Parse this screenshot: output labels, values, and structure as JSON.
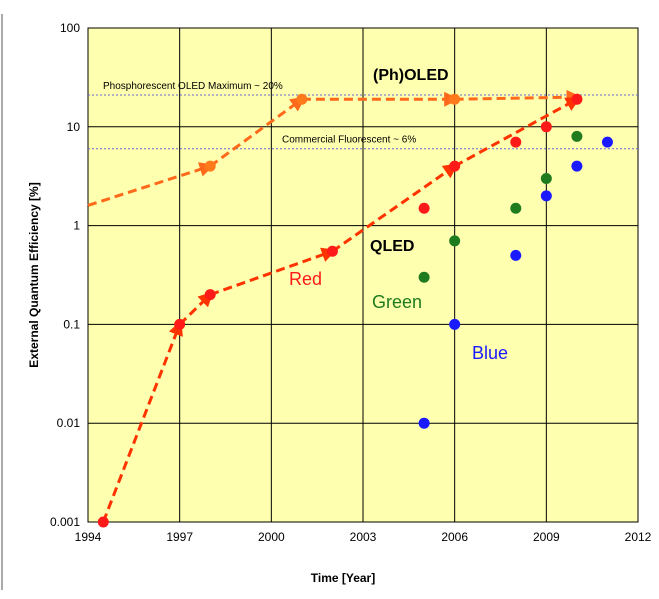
{
  "chart_data": {
    "type": "scatter",
    "title": "",
    "xlabel": "Time [Year]",
    "ylabel": "External Quantum Efficiency [%]",
    "xlim": [
      1994,
      2012
    ],
    "ylim": [
      0.001,
      100
    ],
    "yscale": "log",
    "xticks": [
      "1994",
      "1997",
      "2000",
      "2003",
      "2006",
      "2009",
      "2012"
    ],
    "yticks": [
      "0.001",
      "0.01",
      "0.1",
      "1",
      "10",
      "100"
    ],
    "grid": true,
    "colors": {
      "plot_bg": "#ffffb0",
      "grid": "#000000",
      "red": "#ff1a1a",
      "green": "#1e7b1e",
      "blue": "#1a1aff",
      "orange": "#ff7a1a",
      "red_trend": "#ff3300",
      "orange_trend": "#ff6a1a",
      "ref_line": "#6a6acd"
    },
    "reference_lines": [
      {
        "label": "Phosphorescent OLED Maximum ~ 20%",
        "y": 21
      },
      {
        "label": "Commercial Fluorescent  ~ 6%",
        "y": 6
      }
    ],
    "labels": {
      "pholed": "(Ph)OLED",
      "qled": "QLED",
      "red": "Red",
      "green": "Green",
      "blue": "Blue"
    },
    "series": [
      {
        "color": "orange",
        "points": [
          [
            1998,
            4
          ],
          [
            2001,
            19
          ],
          [
            2006,
            19
          ],
          [
            2010,
            19
          ]
        ]
      },
      {
        "color": "red",
        "points": [
          [
            1994.5,
            0.001
          ],
          [
            1997,
            0.1
          ],
          [
            1998,
            0.2
          ],
          [
            2002,
            0.55
          ],
          [
            2005,
            1.5
          ],
          [
            2006,
            4
          ],
          [
            2008,
            7
          ],
          [
            2009,
            10
          ],
          [
            2010,
            19
          ]
        ]
      },
      {
        "color": "green",
        "points": [
          [
            2005,
            0.3
          ],
          [
            2006,
            0.7
          ],
          [
            2008,
            1.5
          ],
          [
            2009,
            3
          ],
          [
            2010,
            8
          ]
        ]
      },
      {
        "color": "blue",
        "points": [
          [
            2005,
            0.01
          ],
          [
            2006,
            0.1
          ],
          [
            2008,
            0.5
          ],
          [
            2009,
            2
          ],
          [
            2010,
            4
          ],
          [
            2011,
            7
          ]
        ]
      }
    ],
    "trend_lines": [
      {
        "color": "orange_trend",
        "points": [
          [
            1994,
            1.6
          ],
          [
            1998,
            4
          ],
          [
            2001,
            19
          ],
          [
            2006,
            19
          ],
          [
            2010,
            20
          ]
        ]
      },
      {
        "color": "red_trend",
        "points": [
          [
            1994.5,
            0.001
          ],
          [
            1997,
            0.1
          ],
          [
            1998,
            0.2
          ],
          [
            2002,
            0.55
          ],
          [
            2006,
            4
          ],
          [
            2010,
            19
          ]
        ]
      }
    ]
  }
}
